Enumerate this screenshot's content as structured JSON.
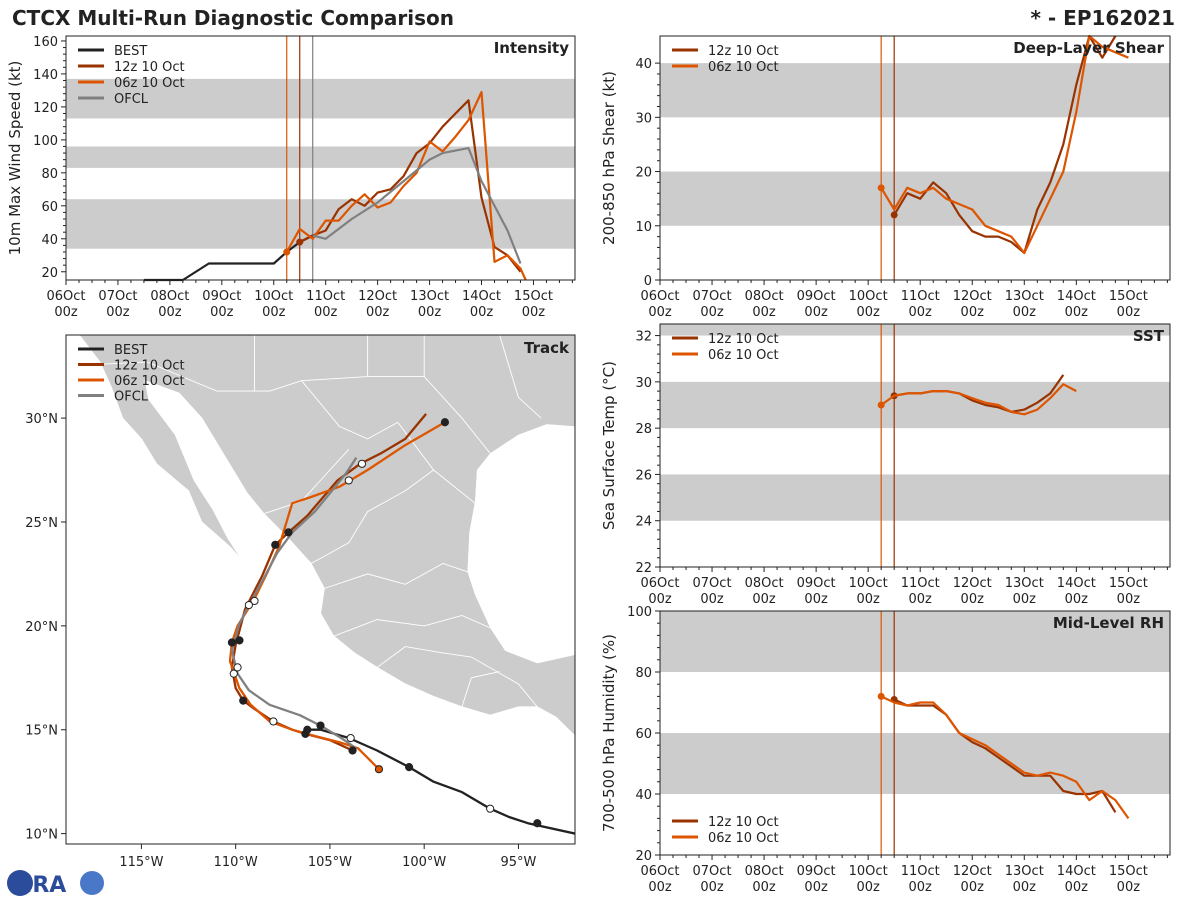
{
  "header": {
    "title": "CTCX Multi-Run Diagnostic Comparison",
    "storm": "* - EP162021"
  },
  "colors": {
    "best": "#222222",
    "run12": "#993300",
    "run06": "#dd5500",
    "ofcl": "#808080",
    "band": "#cccccc",
    "land": "#cccccc"
  },
  "time_ticks": [
    {
      "top": "06Oct",
      "bottom": "00z"
    },
    {
      "top": "07Oct",
      "bottom": "00z"
    },
    {
      "top": "08Oct",
      "bottom": "00z"
    },
    {
      "top": "09Oct",
      "bottom": "00z"
    },
    {
      "top": "10Oct",
      "bottom": "00z"
    },
    {
      "top": "11Oct",
      "bottom": "00z"
    },
    {
      "top": "12Oct",
      "bottom": "00z"
    },
    {
      "top": "13Oct",
      "bottom": "00z"
    },
    {
      "top": "14Oct",
      "bottom": "00z"
    },
    {
      "top": "15Oct",
      "bottom": "00z"
    }
  ],
  "legend": {
    "best": "BEST",
    "run12": "12z 10 Oct",
    "run06": "06z 10 Oct",
    "ofcl": "OFCL"
  },
  "chart_data": [
    {
      "id": "intensity",
      "type": "line",
      "title": "Intensity",
      "ylabel": "10m Max Wind Speed (kt)",
      "xlim": [
        0,
        9.8
      ],
      "ylim": [
        15,
        163
      ],
      "yticks": [
        20,
        40,
        60,
        80,
        100,
        120,
        140,
        160
      ],
      "bands": [
        [
          34,
          64
        ],
        [
          83,
          96
        ],
        [
          113,
          137
        ]
      ],
      "vlines": [
        {
          "x": 4.25,
          "series": "run06"
        },
        {
          "x": 4.5,
          "series": "run12"
        },
        {
          "x": 4.75,
          "series": "ofcl"
        }
      ],
      "series": [
        {
          "key": "best",
          "name": "BEST",
          "x": [
            1.5,
            2.25,
            2.75,
            4.0,
            4.25,
            4.5,
            4.75
          ],
          "y": [
            15,
            15,
            25,
            25,
            32,
            38,
            42
          ]
        },
        {
          "key": "run12",
          "name": "12z 10 Oct",
          "x": [
            4.5,
            4.75,
            5.0,
            5.25,
            5.5,
            5.75,
            6.0,
            6.25,
            6.5,
            6.75,
            7.0,
            7.25,
            7.5,
            7.75,
            8.0,
            8.25,
            8.5,
            8.75
          ],
          "y": [
            38,
            42,
            45,
            58,
            64,
            60,
            68,
            70,
            78,
            92,
            98,
            108,
            116,
            124,
            65,
            35,
            30,
            20
          ]
        },
        {
          "key": "run06",
          "name": "06z 10 Oct",
          "x": [
            4.25,
            4.5,
            4.75,
            5.0,
            5.25,
            5.5,
            5.75,
            6.0,
            6.25,
            6.5,
            6.75,
            7.0,
            7.25,
            7.5,
            7.75,
            8.0,
            8.25,
            8.5,
            8.75,
            8.85
          ],
          "y": [
            32,
            46,
            40,
            51,
            51,
            60,
            67,
            59,
            62,
            72,
            80,
            99,
            93,
            102,
            112,
            129,
            26,
            30,
            22,
            15
          ]
        },
        {
          "key": "ofcl",
          "name": "OFCL",
          "x": [
            4.75,
            5.0,
            5.5,
            6.0,
            6.5,
            7.0,
            7.25,
            7.75,
            8.0,
            8.5,
            8.75
          ],
          "y": [
            42,
            40,
            52,
            62,
            75,
            88,
            92,
            95,
            75,
            45,
            25
          ]
        }
      ]
    },
    {
      "id": "shear",
      "type": "line",
      "title": "Deep-Layer Shear",
      "ylabel": "200-850 hPa Shear (kt)",
      "xlim": [
        0,
        9.8
      ],
      "ylim": [
        0,
        45
      ],
      "yticks": [
        0,
        10,
        20,
        30,
        40
      ],
      "bands": [
        [
          10,
          20
        ],
        [
          30,
          40
        ]
      ],
      "vlines": [
        {
          "x": 4.25,
          "series": "run06"
        },
        {
          "x": 4.5,
          "series": "run12"
        }
      ],
      "series": [
        {
          "key": "run12",
          "name": "12z 10 Oct",
          "x": [
            4.5,
            4.75,
            5.0,
            5.25,
            5.5,
            5.75,
            6.0,
            6.25,
            6.5,
            6.75,
            7.0,
            7.25,
            7.5,
            7.75,
            8.0,
            8.25,
            8.5,
            8.75
          ],
          "y": [
            12,
            16,
            15,
            18,
            16,
            12,
            9,
            8,
            8,
            7,
            5,
            13,
            18,
            25,
            36,
            45,
            41,
            45
          ]
        },
        {
          "key": "run06",
          "name": "06z 10 Oct",
          "x": [
            4.25,
            4.5,
            4.75,
            5.0,
            5.25,
            5.5,
            5.75,
            6.0,
            6.25,
            6.5,
            6.75,
            7.0,
            7.25,
            7.5,
            7.75,
            8.0,
            8.25,
            8.5,
            8.75,
            9.0
          ],
          "y": [
            17,
            13,
            17,
            16,
            17,
            15,
            14,
            13,
            10,
            9,
            8,
            5,
            10,
            15,
            20,
            31,
            45,
            43,
            42,
            41
          ]
        }
      ]
    },
    {
      "id": "sst",
      "type": "line",
      "title": "SST",
      "ylabel": "Sea Surface Temp (°C)",
      "xlim": [
        0,
        9.8
      ],
      "ylim": [
        22,
        32.5
      ],
      "yticks": [
        22,
        24,
        26,
        28,
        30,
        32
      ],
      "bands": [
        [
          24,
          26
        ],
        [
          28,
          30
        ],
        [
          32,
          32.5
        ]
      ],
      "vlines": [
        {
          "x": 4.25,
          "series": "run06"
        },
        {
          "x": 4.5,
          "series": "run12"
        }
      ],
      "series": [
        {
          "key": "run12",
          "name": "12z 10 Oct",
          "x": [
            4.5,
            4.75,
            5.0,
            5.25,
            5.5,
            5.75,
            6.0,
            6.25,
            6.5,
            6.75,
            7.0,
            7.25,
            7.5,
            7.75
          ],
          "y": [
            29.4,
            29.5,
            29.5,
            29.6,
            29.6,
            29.5,
            29.2,
            29.0,
            28.9,
            28.7,
            28.8,
            29.1,
            29.5,
            30.3
          ]
        },
        {
          "key": "run06",
          "name": "06z 10 Oct",
          "x": [
            4.25,
            4.5,
            4.75,
            5.0,
            5.25,
            5.5,
            5.75,
            6.0,
            6.25,
            6.5,
            6.75,
            7.0,
            7.25,
            7.5,
            7.75,
            8.0
          ],
          "y": [
            29.0,
            29.4,
            29.5,
            29.5,
            29.6,
            29.6,
            29.5,
            29.3,
            29.1,
            29.0,
            28.7,
            28.6,
            28.8,
            29.3,
            29.9,
            29.6
          ]
        }
      ]
    },
    {
      "id": "rh",
      "type": "line",
      "title": "Mid-Level RH",
      "ylabel": "700-500 hPa Humidity (%)",
      "xlim": [
        0,
        9.8
      ],
      "ylim": [
        20,
        100
      ],
      "yticks": [
        20,
        40,
        60,
        80,
        100
      ],
      "bands": [
        [
          40,
          60
        ],
        [
          80,
          100
        ]
      ],
      "vlines": [
        {
          "x": 4.25,
          "series": "run06"
        },
        {
          "x": 4.5,
          "series": "run12"
        }
      ],
      "series": [
        {
          "key": "run12",
          "name": "12z 10 Oct",
          "x": [
            4.5,
            4.75,
            5.0,
            5.25,
            5.5,
            5.75,
            6.0,
            6.25,
            6.5,
            6.75,
            7.0,
            7.25,
            7.5,
            7.75,
            8.0,
            8.25,
            8.5,
            8.75
          ],
          "y": [
            71,
            69,
            69,
            69,
            66,
            60,
            57,
            55,
            52,
            49,
            46,
            46,
            46,
            41,
            40,
            40,
            41,
            34
          ]
        },
        {
          "key": "run06",
          "name": "06z 10 Oct",
          "x": [
            4.25,
            4.5,
            4.75,
            5.0,
            5.25,
            5.5,
            5.75,
            6.0,
            6.25,
            6.5,
            6.75,
            7.0,
            7.25,
            7.5,
            7.75,
            8.0,
            8.25,
            8.5,
            8.75,
            9.0
          ],
          "y": [
            72,
            70,
            69,
            70,
            70,
            66,
            60,
            58,
            56,
            53,
            50,
            47,
            46,
            47,
            46,
            44,
            38,
            41,
            38,
            32
          ]
        }
      ]
    },
    {
      "id": "track",
      "type": "scatter",
      "title": "Track",
      "xlim": [
        -119,
        -92
      ],
      "ylim": [
        9.5,
        34
      ],
      "xticks": [
        {
          "lon": -115,
          "label": "115°W"
        },
        {
          "lon": -110,
          "label": "110°W"
        },
        {
          "lon": -105,
          "label": "105°W"
        },
        {
          "lon": -100,
          "label": "100°W"
        },
        {
          "lon": -95,
          "label": "95°W"
        }
      ],
      "yticks": [
        {
          "lat": 10,
          "label": "10°N"
        },
        {
          "lat": 15,
          "label": "15°N"
        },
        {
          "lat": 20,
          "label": "20°N"
        },
        {
          "lat": 25,
          "label": "25°N"
        },
        {
          "lat": 30,
          "label": "30°N"
        }
      ],
      "series": [
        {
          "key": "best",
          "name": "BEST",
          "lon": [
            -92,
            -94.5,
            -95.5,
            -96.5,
            -98,
            -99.5,
            -100.8,
            -102.5,
            -104,
            -105.5,
            -106.3
          ],
          "lat": [
            10,
            10.5,
            10.8,
            11.2,
            12,
            12.5,
            13.2,
            14,
            14.6,
            15,
            15
          ],
          "open": [
            false,
            true,
            false,
            true,
            false,
            false,
            false,
            false,
            false,
            false,
            false
          ],
          "dots": [
            [
              -94,
              10.5,
              false
            ],
            [
              -96.5,
              11.2,
              true
            ],
            [
              -100.8,
              13.2,
              false
            ]
          ]
        },
        {
          "key": "run12",
          "name": "12z 10 Oct",
          "lon": [
            -103.8,
            -105,
            -106.3,
            -107,
            -108,
            -109,
            -109.6,
            -110,
            -110.2,
            -110,
            -109.5,
            -108.6,
            -107.9,
            -107.2,
            -106.2,
            -104.6,
            -103.4,
            -102.3,
            -101.0,
            -99.9
          ],
          "lat": [
            14.0,
            14.5,
            14.8,
            15.0,
            15.4,
            16.0,
            16.4,
            17.0,
            18.0,
            19.1,
            20.8,
            22.4,
            23.9,
            24.5,
            25.3,
            27.0,
            27.8,
            28.3,
            29.0,
            30.2
          ],
          "dots": [
            [
              -103.8,
              14.0,
              false
            ],
            [
              -106.3,
              14.8,
              false
            ],
            [
              -109.6,
              16.4,
              false
            ],
            [
              -109.8,
              19.3,
              false
            ],
            [
              -107.9,
              23.9,
              false
            ],
            [
              -107.2,
              24.5,
              false
            ]
          ]
        },
        {
          "key": "run06",
          "name": "06z 10 Oct",
          "lon": [
            -102.4,
            -103.5,
            -104.5,
            -105.8,
            -107,
            -108.2,
            -109.2,
            -109.8,
            -110.3,
            -110.2,
            -109.9,
            -109.0,
            -108.3,
            -107.7,
            -107.0,
            -106.0,
            -104.5,
            -103.0,
            -101.0,
            -98.9
          ],
          "lat": [
            13.1,
            14.1,
            14.4,
            14.7,
            15.0,
            15.4,
            16.2,
            17.0,
            18.3,
            19.2,
            20.0,
            21.3,
            22.6,
            23.8,
            25.9,
            26.2,
            26.7,
            27.5,
            28.7,
            29.8
          ],
          "dots": [
            [
              -102.4,
              13.1,
              false
            ],
            [
              -106.2,
              15.0,
              false
            ],
            [
              -108,
              15.4,
              true
            ],
            [
              -110.2,
              19.2,
              false
            ],
            [
              -109.0,
              21.2,
              true
            ],
            [
              -103.3,
              27.8,
              true
            ],
            [
              -98.9,
              29.8,
              false
            ]
          ]
        },
        {
          "key": "ofcl",
          "name": "OFCL",
          "lon": [
            -103.6,
            -104.4,
            -105.5,
            -106.6,
            -108.2,
            -109.3,
            -109.9,
            -110.2,
            -109.8,
            -109.3,
            -108.5,
            -107.8,
            -107.0,
            -105.8,
            -104.8,
            -104.1,
            -103.6
          ],
          "lat": [
            14.1,
            14.6,
            15.2,
            15.7,
            16.2,
            16.9,
            17.7,
            18.8,
            20.1,
            21.0,
            22.3,
            23.5,
            24.5,
            25.5,
            26.6,
            27.4,
            28.1
          ],
          "dots": [
            [
              -103.9,
              14.6,
              true
            ],
            [
              -105.5,
              15.2,
              false
            ],
            [
              -110.1,
              17.7,
              true
            ],
            [
              -109.9,
              18.0,
              true
            ],
            [
              -109.3,
              21.0,
              true
            ],
            [
              -104.0,
              27.0,
              true
            ]
          ]
        }
      ]
    }
  ],
  "logo": {
    "text": "CIRA"
  }
}
